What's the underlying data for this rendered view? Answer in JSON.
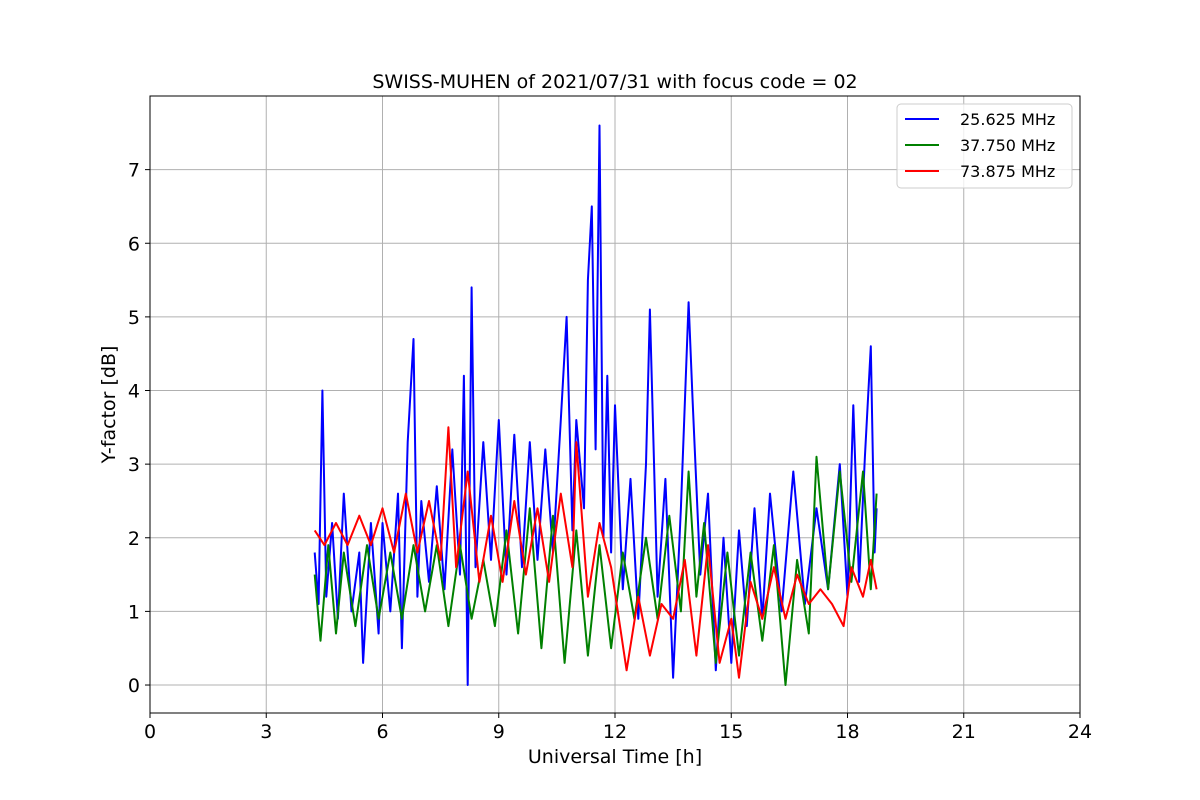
{
  "chart_data": {
    "type": "line",
    "title": "SWISS-MUHEN of 2021/07/31 with focus code = 02",
    "xlabel": "Universal Time [h]",
    "ylabel": "Y-factor [dB]",
    "xlim": [
      0,
      24
    ],
    "ylim": [
      -0.38,
      8.0
    ],
    "xticks": [
      0,
      3,
      6,
      9,
      12,
      15,
      18,
      21,
      24
    ],
    "yticks": [
      0,
      1,
      2,
      3,
      4,
      5,
      6,
      7
    ],
    "grid": true,
    "legend_position": "upper right",
    "series": [
      {
        "name": "25.625 MHz",
        "color": "#0000ff",
        "points": [
          [
            4.25,
            1.8
          ],
          [
            4.35,
            1.1
          ],
          [
            4.45,
            4.0
          ],
          [
            4.55,
            1.2
          ],
          [
            4.7,
            2.2
          ],
          [
            4.85,
            0.9
          ],
          [
            5.0,
            2.6
          ],
          [
            5.2,
            1.0
          ],
          [
            5.4,
            1.8
          ],
          [
            5.5,
            0.3
          ],
          [
            5.7,
            2.2
          ],
          [
            5.9,
            0.7
          ],
          [
            6.0,
            2.2
          ],
          [
            6.2,
            1.0
          ],
          [
            6.4,
            2.6
          ],
          [
            6.5,
            0.5
          ],
          [
            6.65,
            3.3
          ],
          [
            6.8,
            4.7
          ],
          [
            6.9,
            1.2
          ],
          [
            7.0,
            2.5
          ],
          [
            7.2,
            1.4
          ],
          [
            7.4,
            2.7
          ],
          [
            7.6,
            1.3
          ],
          [
            7.8,
            3.2
          ],
          [
            8.0,
            1.5
          ],
          [
            8.1,
            4.2
          ],
          [
            8.2,
            0.0
          ],
          [
            8.3,
            5.4
          ],
          [
            8.4,
            1.6
          ],
          [
            8.6,
            3.3
          ],
          [
            8.8,
            1.7
          ],
          [
            9.0,
            3.6
          ],
          [
            9.2,
            1.5
          ],
          [
            9.4,
            3.4
          ],
          [
            9.6,
            1.6
          ],
          [
            9.8,
            3.3
          ],
          [
            10.0,
            1.7
          ],
          [
            10.2,
            3.2
          ],
          [
            10.4,
            1.8
          ],
          [
            10.6,
            3.6
          ],
          [
            10.75,
            5.0
          ],
          [
            10.9,
            2.1
          ],
          [
            11.0,
            3.6
          ],
          [
            11.2,
            2.4
          ],
          [
            11.3,
            5.5
          ],
          [
            11.4,
            6.5
          ],
          [
            11.5,
            3.2
          ],
          [
            11.6,
            7.6
          ],
          [
            11.7,
            2.0
          ],
          [
            11.8,
            4.2
          ],
          [
            11.9,
            1.8
          ],
          [
            12.0,
            3.8
          ],
          [
            12.2,
            1.3
          ],
          [
            12.4,
            2.8
          ],
          [
            12.6,
            0.9
          ],
          [
            12.8,
            3.0
          ],
          [
            12.9,
            5.1
          ],
          [
            13.1,
            1.2
          ],
          [
            13.3,
            2.8
          ],
          [
            13.5,
            0.1
          ],
          [
            13.7,
            2.4
          ],
          [
            13.9,
            5.2
          ],
          [
            14.0,
            3.9
          ],
          [
            14.2,
            1.5
          ],
          [
            14.4,
            2.6
          ],
          [
            14.6,
            0.2
          ],
          [
            14.8,
            2.0
          ],
          [
            15.0,
            0.3
          ],
          [
            15.2,
            2.1
          ],
          [
            15.4,
            0.8
          ],
          [
            15.6,
            2.4
          ],
          [
            15.8,
            0.9
          ],
          [
            16.0,
            2.6
          ],
          [
            16.3,
            1.0
          ],
          [
            16.6,
            2.9
          ],
          [
            16.9,
            1.1
          ],
          [
            17.2,
            2.4
          ],
          [
            17.5,
            1.3
          ],
          [
            17.8,
            3.0
          ],
          [
            18.0,
            1.2
          ],
          [
            18.15,
            3.8
          ],
          [
            18.3,
            1.4
          ],
          [
            18.45,
            3.1
          ],
          [
            18.6,
            4.6
          ],
          [
            18.7,
            1.8
          ],
          [
            18.75,
            2.4
          ]
        ]
      },
      {
        "name": "37.750 MHz",
        "color": "#008000",
        "points": [
          [
            4.25,
            1.5
          ],
          [
            4.4,
            0.6
          ],
          [
            4.6,
            1.9
          ],
          [
            4.8,
            0.7
          ],
          [
            5.0,
            1.8
          ],
          [
            5.3,
            0.8
          ],
          [
            5.6,
            1.9
          ],
          [
            5.9,
            0.9
          ],
          [
            6.2,
            1.8
          ],
          [
            6.5,
            0.9
          ],
          [
            6.8,
            1.9
          ],
          [
            7.1,
            1.0
          ],
          [
            7.4,
            1.9
          ],
          [
            7.7,
            0.8
          ],
          [
            8.0,
            1.9
          ],
          [
            8.3,
            0.9
          ],
          [
            8.6,
            1.7
          ],
          [
            8.9,
            0.8
          ],
          [
            9.2,
            2.1
          ],
          [
            9.5,
            0.7
          ],
          [
            9.8,
            2.4
          ],
          [
            10.1,
            0.5
          ],
          [
            10.4,
            2.3
          ],
          [
            10.7,
            0.3
          ],
          [
            11.0,
            2.1
          ],
          [
            11.3,
            0.4
          ],
          [
            11.6,
            1.9
          ],
          [
            11.9,
            0.5
          ],
          [
            12.2,
            1.8
          ],
          [
            12.5,
            0.9
          ],
          [
            12.8,
            2.0
          ],
          [
            13.1,
            0.9
          ],
          [
            13.4,
            2.3
          ],
          [
            13.7,
            1.0
          ],
          [
            13.9,
            2.9
          ],
          [
            14.1,
            1.2
          ],
          [
            14.3,
            2.2
          ],
          [
            14.6,
            0.3
          ],
          [
            14.9,
            1.8
          ],
          [
            15.2,
            0.4
          ],
          [
            15.5,
            1.8
          ],
          [
            15.8,
            0.6
          ],
          [
            16.1,
            1.9
          ],
          [
            16.4,
            0.0
          ],
          [
            16.7,
            1.7
          ],
          [
            17.0,
            0.7
          ],
          [
            17.2,
            3.1
          ],
          [
            17.5,
            1.3
          ],
          [
            17.8,
            2.9
          ],
          [
            18.1,
            1.4
          ],
          [
            18.4,
            2.9
          ],
          [
            18.6,
            1.3
          ],
          [
            18.75,
            2.6
          ]
        ]
      },
      {
        "name": "73.875 MHz",
        "color": "#ff0000",
        "points": [
          [
            4.25,
            2.1
          ],
          [
            4.5,
            1.9
          ],
          [
            4.8,
            2.2
          ],
          [
            5.1,
            1.9
          ],
          [
            5.4,
            2.3
          ],
          [
            5.7,
            1.9
          ],
          [
            6.0,
            2.4
          ],
          [
            6.3,
            1.8
          ],
          [
            6.6,
            2.6
          ],
          [
            6.9,
            1.8
          ],
          [
            7.2,
            2.5
          ],
          [
            7.5,
            1.7
          ],
          [
            7.7,
            3.5
          ],
          [
            7.9,
            1.6
          ],
          [
            8.2,
            2.9
          ],
          [
            8.5,
            1.4
          ],
          [
            8.8,
            2.3
          ],
          [
            9.1,
            1.4
          ],
          [
            9.4,
            2.5
          ],
          [
            9.7,
            1.5
          ],
          [
            10.0,
            2.4
          ],
          [
            10.3,
            1.4
          ],
          [
            10.6,
            2.6
          ],
          [
            10.9,
            1.6
          ],
          [
            11.0,
            3.3
          ],
          [
            11.3,
            1.2
          ],
          [
            11.6,
            2.2
          ],
          [
            11.9,
            1.6
          ],
          [
            12.1,
            0.9
          ],
          [
            12.3,
            0.2
          ],
          [
            12.6,
            1.2
          ],
          [
            12.9,
            0.4
          ],
          [
            13.2,
            1.1
          ],
          [
            13.5,
            0.9
          ],
          [
            13.8,
            1.7
          ],
          [
            14.1,
            0.4
          ],
          [
            14.4,
            1.9
          ],
          [
            14.7,
            0.3
          ],
          [
            15.0,
            0.9
          ],
          [
            15.2,
            0.1
          ],
          [
            15.5,
            1.4
          ],
          [
            15.8,
            0.9
          ],
          [
            16.1,
            1.6
          ],
          [
            16.4,
            0.9
          ],
          [
            16.7,
            1.5
          ],
          [
            17.0,
            1.1
          ],
          [
            17.3,
            1.3
          ],
          [
            17.6,
            1.1
          ],
          [
            17.9,
            0.8
          ],
          [
            18.1,
            1.6
          ],
          [
            18.4,
            1.2
          ],
          [
            18.6,
            1.7
          ],
          [
            18.75,
            1.3
          ]
        ]
      }
    ]
  }
}
